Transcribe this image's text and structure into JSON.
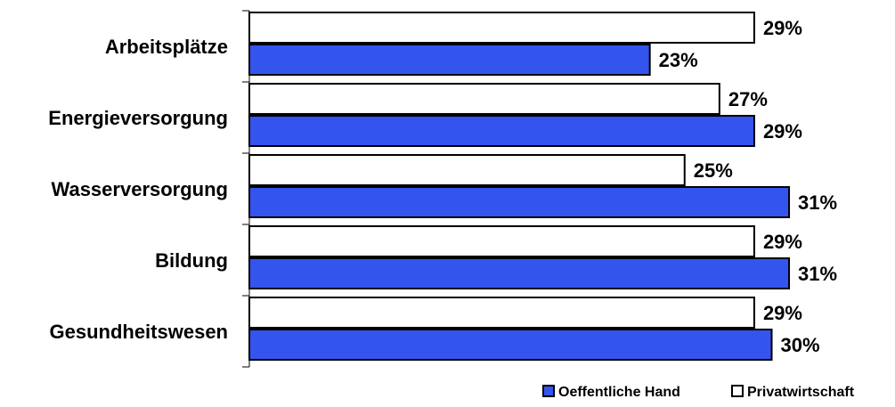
{
  "chart_data": {
    "type": "bar",
    "orientation": "horizontal",
    "categories": [
      "Arbeitsplätze",
      "Energieversorgung",
      "Wasserversorgung",
      "Bildung",
      "Gesundheitswesen"
    ],
    "series": [
      {
        "name": "Privatwirtschaft",
        "values": [
          29,
          27,
          25,
          29,
          29
        ],
        "value_labels": [
          "29%",
          "27%",
          "25%",
          "29%",
          "29%"
        ],
        "color": "#ffffff"
      },
      {
        "name": "Oeffentliche Hand",
        "values": [
          23,
          29,
          31,
          31,
          30
        ],
        "value_labels": [
          "23%",
          "29%",
          "31%",
          "31%",
          "30%"
        ],
        "color": "#3355ee"
      }
    ],
    "legend_order": [
      "Oeffentliche Hand",
      "Privatwirtschaft"
    ],
    "legend_position": "bottom-right",
    "xlim": [
      0,
      31
    ],
    "grid": false,
    "title": "",
    "xlabel": "",
    "ylabel": ""
  }
}
